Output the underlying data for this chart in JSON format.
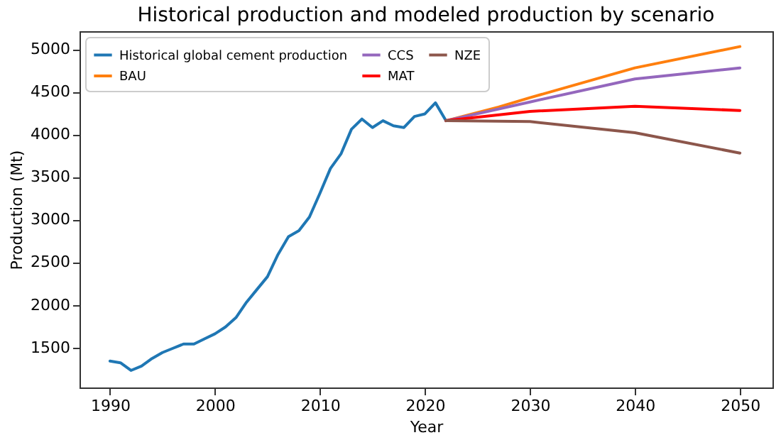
{
  "chart_data": {
    "type": "line",
    "title": "Historical production and modeled production by scenario",
    "xlabel": "Year",
    "ylabel": "Production (Mt)",
    "xlim": [
      1987.1,
      2053.1
    ],
    "xticks": [
      1990,
      2000,
      2010,
      2020,
      2030,
      2040,
      2050
    ],
    "ylim": [
      1030,
      5210
    ],
    "yticks": [
      1500,
      2000,
      2500,
      3000,
      3500,
      4000,
      4500,
      5000
    ],
    "grid": false,
    "legend": "top left",
    "marker": "none",
    "line_style": "solid",
    "series": [
      {
        "name": "Historical global cement production",
        "color": "#1f77b4",
        "x": [
          1990,
          1991,
          1992,
          1993,
          1994,
          1995,
          1996,
          1997,
          1998,
          1999,
          2000,
          2001,
          2002,
          2003,
          2004,
          2005,
          2006,
          2007,
          2008,
          2009,
          2010,
          2011,
          2012,
          2013,
          2014,
          2015,
          2016,
          2017,
          2018,
          2019,
          2020,
          2021,
          2022
        ],
        "values": [
          1340,
          1320,
          1230,
          1280,
          1370,
          1440,
          1490,
          1540,
          1540,
          1600,
          1660,
          1740,
          1850,
          2030,
          2180,
          2330,
          2590,
          2800,
          2870,
          3030,
          3310,
          3600,
          3770,
          4060,
          4180,
          4080,
          4160,
          4100,
          4080,
          4210,
          4240,
          4370,
          4160
        ]
      },
      {
        "name": "BAU",
        "color": "#ff7f0e",
        "x": [
          2022,
          2027,
          2030,
          2040,
          2050
        ],
        "values": [
          4160,
          4320,
          4430,
          4780,
          5030
        ]
      },
      {
        "name": "CCS",
        "color": "#9467bd",
        "x": [
          2022,
          2030,
          2040,
          2050
        ],
        "values": [
          4160,
          4380,
          4650,
          4780
        ]
      },
      {
        "name": "MAT",
        "color": "#ff0000",
        "x": [
          2022,
          2030,
          2040,
          2050
        ],
        "values": [
          4160,
          4270,
          4330,
          4280
        ]
      },
      {
        "name": "NZE",
        "color": "#8c564b",
        "x": [
          2022,
          2030,
          2040,
          2050
        ],
        "values": [
          4160,
          4150,
          4020,
          3780
        ]
      }
    ]
  }
}
